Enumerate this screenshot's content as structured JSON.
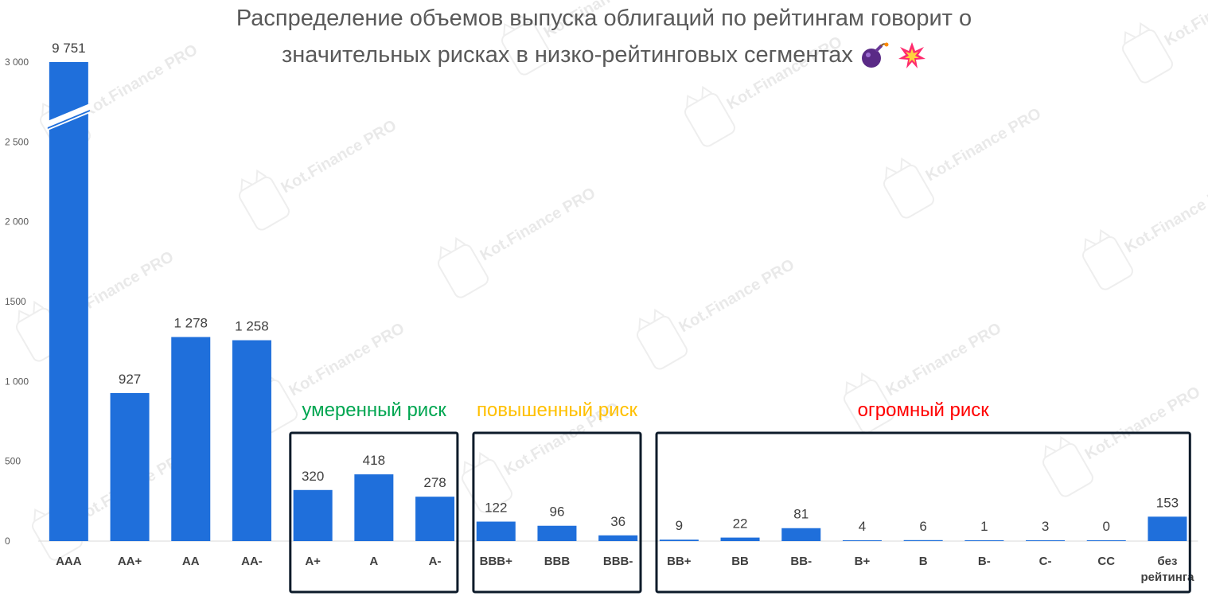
{
  "title": {
    "line1": "Распределение объемов выпуска облигаций по рейтингам говорит о",
    "line2": "значительных рисках в низко-рейтинговых сегментах"
  },
  "watermark": "Kot.Finance PRO",
  "groups": [
    {
      "label": "умеренный риск",
      "color": "#00A651"
    },
    {
      "label": "повышенный риск",
      "color": "#FFC000"
    },
    {
      "label": "огромный риск",
      "color": "#FF0000"
    }
  ],
  "chart_data": {
    "type": "bar",
    "categories": [
      "AAA",
      "AA+",
      "AA",
      "AA-",
      "A+",
      "A",
      "A-",
      "BBB+",
      "BBB",
      "BBB-",
      "BB+",
      "BB",
      "BB-",
      "B+",
      "B",
      "B-",
      "C-",
      "CC",
      "без рейтинга"
    ],
    "values": [
      9751,
      927,
      1278,
      1258,
      320,
      418,
      278,
      122,
      96,
      36,
      9,
      22,
      81,
      4,
      6,
      1,
      3,
      0,
      153
    ],
    "value_labels": [
      "9 751",
      "927",
      "1 278",
      "1 258",
      "320",
      "418",
      "278",
      "122",
      "96",
      "36",
      "9",
      "22",
      "81",
      "4",
      "6",
      "1",
      "3",
      "0",
      "153"
    ],
    "ylim": [
      0,
      3000
    ],
    "yticks": [
      "0",
      "500",
      "1 000",
      "1500",
      "2 000",
      "2 500",
      "3 000"
    ],
    "axis_break": true,
    "bar_color": "#1F6FDB",
    "grid": false
  }
}
